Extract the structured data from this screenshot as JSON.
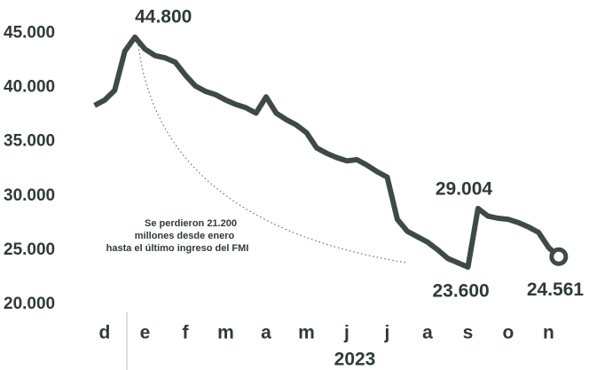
{
  "chart_data": {
    "type": "line",
    "x_label": "2023",
    "annotation": [
      "Se perdieron 21.200",
      "millones desde enero",
      "hasta el último ingreso del FMI"
    ],
    "categories": [
      null,
      "d",
      null,
      null,
      null,
      "e",
      null,
      null,
      null,
      "f",
      null,
      null,
      null,
      "m",
      null,
      null,
      null,
      "a",
      null,
      null,
      null,
      "m",
      null,
      null,
      null,
      "j",
      null,
      null,
      null,
      "j",
      null,
      null,
      null,
      "a",
      null,
      null,
      null,
      "s",
      null,
      null,
      null,
      "o",
      null,
      null,
      null,
      "n",
      null
    ],
    "series": [
      {
        "color": "#3d4a47",
        "values": [
          38500,
          39000,
          39900,
          43500,
          44800,
          43700,
          43100,
          42900,
          42500,
          41300,
          40300,
          39800,
          39500,
          39000,
          38600,
          38300,
          37800,
          39300,
          37800,
          37200,
          36700,
          36000,
          34600,
          34100,
          33700,
          33400,
          33500,
          33000,
          32400,
          31900,
          28000,
          26900,
          26400,
          25900,
          25200,
          24400,
          24000,
          23600,
          29004,
          28300,
          28100,
          28000,
          27700,
          27300,
          26800,
          25400,
          24561
        ],
        "value_labels": [
          null,
          null,
          null,
          null,
          "44.800",
          null,
          null,
          null,
          null,
          null,
          null,
          null,
          null,
          null,
          null,
          null,
          null,
          null,
          null,
          null,
          null,
          null,
          null,
          null,
          null,
          null,
          null,
          null,
          null,
          null,
          null,
          null,
          null,
          null,
          null,
          null,
          null,
          "23.600",
          "29.004",
          null,
          null,
          null,
          null,
          null,
          null,
          null,
          "24.561"
        ]
      }
    ],
    "ylim": [
      20000,
      45000
    ],
    "yticks": [
      {
        "value": 20000,
        "label": "20.000"
      },
      {
        "value": 25000,
        "label": "25.000"
      },
      {
        "value": 30000,
        "label": "30.000"
      },
      {
        "value": 35000,
        "label": "35.000"
      },
      {
        "value": 40000,
        "label": "40.000"
      },
      {
        "value": 45000,
        "label": "45.000"
      }
    ]
  }
}
